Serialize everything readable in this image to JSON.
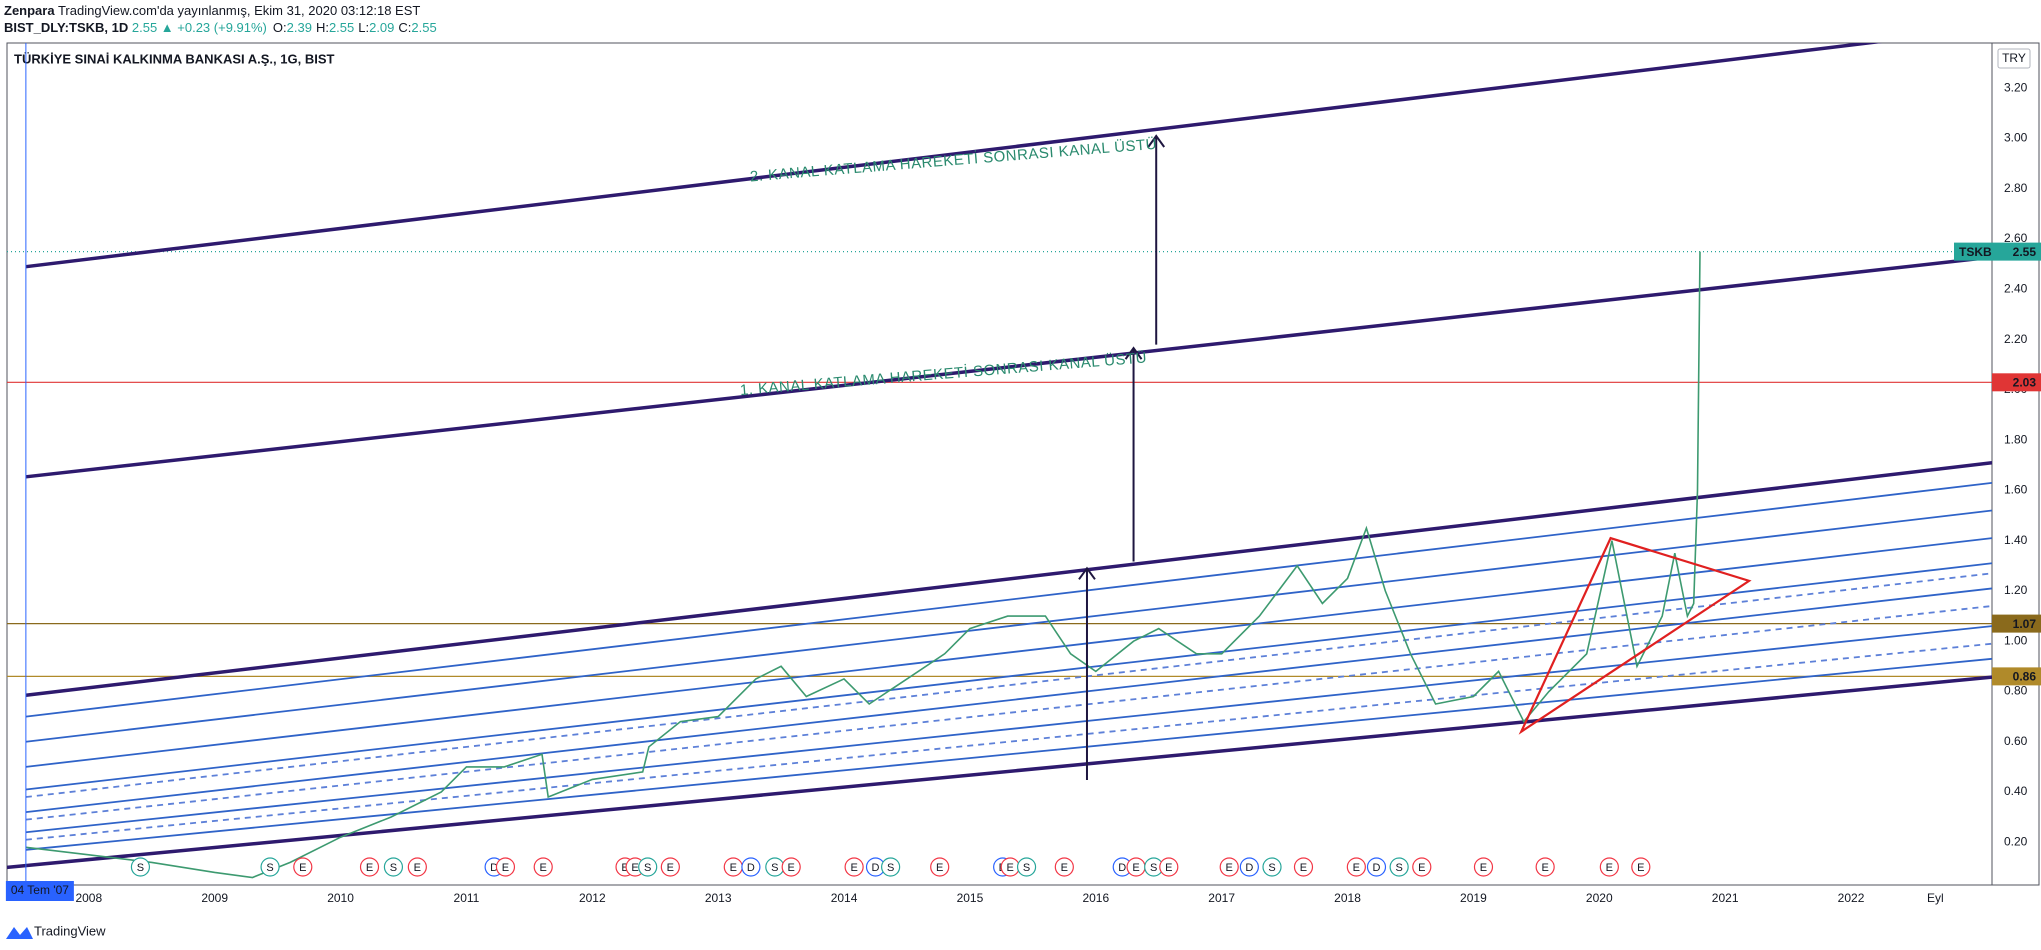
{
  "header": {
    "author": "Zenpara",
    "published": "TradingView.com'da yayınlanmış, Ekim 31, 2020 03:12:18 EST",
    "symbol": "BIST_DLY:TSKB, 1D",
    "change": "2.55 ▲ +0.23 (+9.91%)",
    "ohlc": [
      [
        "O:",
        "2.39"
      ],
      [
        "H:",
        "2.55"
      ],
      [
        "L:",
        "2.09"
      ],
      [
        "C:",
        "2.55"
      ]
    ],
    "currency": "TRY",
    "brand": "TradingView"
  },
  "chart_data": {
    "type": "line",
    "title": "TÜRKİYE SINAİ KALKINMA BANKASI A.Ş., 1G, BIST",
    "xlim": [
      2007.35,
      2023.12
    ],
    "ylim": [
      0.03,
      3.38
    ],
    "xticks": [
      2008,
      2009,
      2010,
      2011,
      2012,
      2013,
      2014,
      2015,
      2016,
      2017,
      2018,
      2019,
      2020,
      2021,
      2022,
      {
        "value": 2022.67,
        "label": "Eyl"
      }
    ],
    "yticks": [
      {
        "value": 0.2,
        "label": "0.20"
      },
      {
        "value": 0.4,
        "label": "0.40"
      },
      {
        "value": 0.6,
        "label": "0.60"
      },
      {
        "value": 0.8,
        "label": "0.80"
      },
      {
        "value": 1.0,
        "label": "1.00"
      },
      {
        "value": 1.2,
        "label": "1.20"
      },
      {
        "value": 1.4,
        "label": "1.40"
      },
      {
        "value": 1.6,
        "label": "1.60"
      },
      {
        "value": 1.8,
        "label": "1.80"
      },
      {
        "value": 2.0,
        "label": "2.00"
      },
      {
        "value": 2.2,
        "label": "2.20"
      },
      {
        "value": 2.4,
        "label": "2.40"
      },
      {
        "value": 2.6,
        "label": "2.60"
      },
      {
        "value": 2.8,
        "label": "2.80"
      },
      {
        "value": 3.0,
        "label": "3.00"
      },
      {
        "value": 3.2,
        "label": "3.20"
      }
    ],
    "grid": false,
    "series": [
      {
        "name": "TSKB",
        "color": "#3d9a70",
        "x": [
          2007.5,
          2008.0,
          2008.5,
          2009.0,
          2009.3,
          2009.6,
          2010.0,
          2010.4,
          2010.8,
          2011.0,
          2011.3,
          2011.6,
          2011.65,
          2012.0,
          2012.4,
          2012.45,
          2012.7,
          2013.0,
          2013.3,
          2013.5,
          2013.7,
          2014.0,
          2014.2,
          2014.5,
          2014.8,
          2015.0,
          2015.3,
          2015.6,
          2015.8,
          2016.0,
          2016.3,
          2016.5,
          2016.8,
          2017.0,
          2017.3,
          2017.6,
          2017.8,
          2018.0,
          2018.15,
          2018.3,
          2018.5,
          2018.7,
          2019.0,
          2019.2,
          2019.4,
          2019.6,
          2019.9,
          2020.1,
          2020.3,
          2020.5,
          2020.6,
          2020.7,
          2020.75,
          2020.78,
          2020.8
        ],
        "values": [
          0.18,
          0.15,
          0.12,
          0.08,
          0.06,
          0.12,
          0.22,
          0.3,
          0.4,
          0.5,
          0.5,
          0.55,
          0.38,
          0.45,
          0.48,
          0.58,
          0.68,
          0.7,
          0.85,
          0.9,
          0.78,
          0.85,
          0.75,
          0.85,
          0.95,
          1.05,
          1.1,
          1.1,
          0.95,
          0.88,
          1.0,
          1.05,
          0.95,
          0.95,
          1.1,
          1.3,
          1.15,
          1.25,
          1.45,
          1.2,
          0.95,
          0.75,
          0.78,
          0.88,
          0.68,
          0.8,
          0.95,
          1.4,
          0.9,
          1.1,
          1.35,
          1.1,
          1.15,
          1.6,
          2.55
        ]
      }
    ],
    "hlines": [
      {
        "name": "TSKB",
        "value": 2.55,
        "color": "#26a69a",
        "style": "dotted"
      },
      {
        "value": 2.03,
        "color": "#e03535",
        "style": "solid"
      },
      {
        "value": 1.07,
        "color": "#8a6a1c",
        "style": "solid"
      },
      {
        "value": 0.86,
        "color": "#b08a2a",
        "style": "solid"
      }
    ],
    "drawings": [
      {
        "x": [
          2007.35,
          2023.12
        ],
        "y": [
          0.1,
          0.857
        ],
        "color": "#2e1a6e",
        "style": "thick"
      },
      {
        "x": [
          2007.5,
          2023.12
        ],
        "y": [
          0.785,
          1.71
        ],
        "color": "#2e1a6e",
        "style": "thick"
      },
      {
        "x": [
          2007.5,
          2023.12
        ],
        "y": [
          1.654,
          2.528
        ],
        "color": "#2e1a6e",
        "style": "thick"
      },
      {
        "x": [
          2007.5,
          2023.12
        ],
        "y": [
          2.49,
          3.44
        ],
        "color": "#2e1a6e",
        "style": "thick"
      },
      {
        "x": [
          2007.5,
          2023.12
        ],
        "y": [
          0.7,
          1.63
        ],
        "color": "#2f63c8",
        "style": "solid"
      },
      {
        "x": [
          2007.5,
          2023.12
        ],
        "y": [
          0.6,
          1.52
        ],
        "color": "#2f63c8",
        "style": "solid"
      },
      {
        "x": [
          2007.5,
          2023.12
        ],
        "y": [
          0.5,
          1.41
        ],
        "color": "#2f63c8",
        "style": "solid"
      },
      {
        "x": [
          2007.5,
          2023.12
        ],
        "y": [
          0.41,
          1.31
        ],
        "color": "#2f63c8",
        "style": "solid"
      },
      {
        "x": [
          2007.5,
          2023.12
        ],
        "y": [
          0.32,
          1.21
        ],
        "color": "#2f63c8",
        "style": "solid"
      },
      {
        "x": [
          2007.5,
          2023.12
        ],
        "y": [
          0.24,
          1.06
        ],
        "color": "#2f63c8",
        "style": "solid"
      },
      {
        "x": [
          2007.5,
          2023.12
        ],
        "y": [
          0.17,
          0.93
        ],
        "color": "#2f63c8",
        "style": "solid"
      },
      {
        "x": [
          2007.5,
          2023.12
        ],
        "y": [
          0.38,
          1.27
        ],
        "color": "#5d80d8",
        "style": "dashed"
      },
      {
        "x": [
          2007.5,
          2023.12
        ],
        "y": [
          0.29,
          1.14
        ],
        "color": "#5d80d8",
        "style": "dashed"
      },
      {
        "x": [
          2007.5,
          2023.12
        ],
        "y": [
          0.21,
          0.99
        ],
        "color": "#5d80d8",
        "style": "dashed"
      }
    ],
    "triangle": {
      "x": [
        2019.38,
        2020.09,
        2021.19
      ],
      "y": [
        0.64,
        1.41,
        1.24
      ],
      "color": "#e02020"
    },
    "arrows": [
      {
        "x": 2015.93,
        "y": [
          0.448,
          1.29
        ],
        "color": "#1e1640"
      },
      {
        "x": 2016.3,
        "y": [
          1.317,
          2.166
        ],
        "color": "#1e1640"
      },
      {
        "x": 2016.48,
        "y": [
          2.18,
          3.01
        ],
        "color": "#1e1640"
      }
    ],
    "annotations": [
      {
        "text": "1. KANAL KATLAMA HAREKETİ SONRASI KANAL ÜSTÜ",
        "x": 2014.79,
        "y": 2.06
      },
      {
        "text": "2. KANAL KATLAMA HAREKETİ SONRASI KANAL ÜSTÜ",
        "x": 2014.87,
        "y": 2.91
      }
    ],
    "crosshair": {
      "x": 2007.5,
      "label": "04 Tem '07",
      "color": "#2962ff"
    },
    "event_colors": {
      "E": "#f23645",
      "S": "#26a69a",
      "D": "#2962ff"
    },
    "events": [
      {
        "x": 2008.41,
        "label": "S"
      },
      {
        "x": 2009.44,
        "label": "S"
      },
      {
        "x": 2009.7,
        "label": "E"
      },
      {
        "x": 2010.23,
        "label": "E"
      },
      {
        "x": 2010.42,
        "label": "S"
      },
      {
        "x": 2010.61,
        "label": "E"
      },
      {
        "x": 2011.22,
        "label": "D"
      },
      {
        "x": 2011.31,
        "label": "E"
      },
      {
        "x": 2011.61,
        "label": "E"
      },
      {
        "x": 2012.26,
        "label": "E"
      },
      {
        "x": 2012.34,
        "label": "E"
      },
      {
        "x": 2012.44,
        "label": "S"
      },
      {
        "x": 2012.62,
        "label": "E"
      },
      {
        "x": 2013.12,
        "label": "E"
      },
      {
        "x": 2013.26,
        "label": "D"
      },
      {
        "x": 2013.45,
        "label": "S"
      },
      {
        "x": 2013.58,
        "label": "E"
      },
      {
        "x": 2014.08,
        "label": "E"
      },
      {
        "x": 2014.25,
        "label": "D"
      },
      {
        "x": 2014.37,
        "label": "S"
      },
      {
        "x": 2014.76,
        "label": "E"
      },
      {
        "x": 2015.26,
        "label": "D"
      },
      {
        "x": 2015.32,
        "label": "E"
      },
      {
        "x": 2015.45,
        "label": "S"
      },
      {
        "x": 2015.75,
        "label": "E"
      },
      {
        "x": 2016.21,
        "label": "D"
      },
      {
        "x": 2016.32,
        "label": "E"
      },
      {
        "x": 2016.46,
        "label": "S"
      },
      {
        "x": 2016.58,
        "label": "E"
      },
      {
        "x": 2017.06,
        "label": "E"
      },
      {
        "x": 2017.22,
        "label": "D"
      },
      {
        "x": 2017.4,
        "label": "S"
      },
      {
        "x": 2017.65,
        "label": "E"
      },
      {
        "x": 2018.07,
        "label": "E"
      },
      {
        "x": 2018.23,
        "label": "D"
      },
      {
        "x": 2018.41,
        "label": "S"
      },
      {
        "x": 2018.59,
        "label": "E"
      },
      {
        "x": 2019.08,
        "label": "E"
      },
      {
        "x": 2019.57,
        "label": "E"
      },
      {
        "x": 2020.08,
        "label": "E"
      },
      {
        "x": 2020.33,
        "label": "E"
      }
    ]
  }
}
